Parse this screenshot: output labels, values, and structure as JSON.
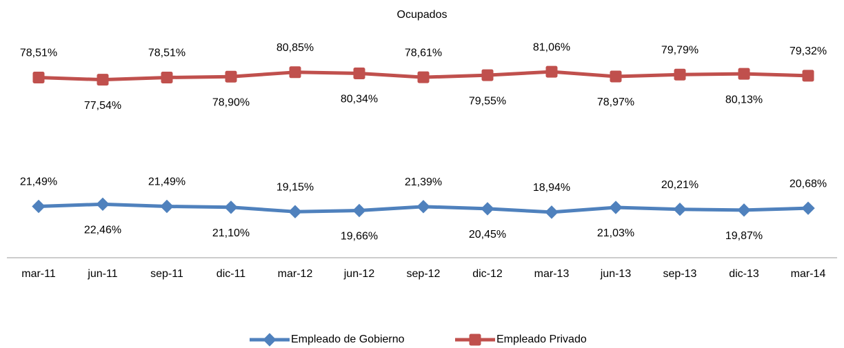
{
  "chart_data": {
    "type": "line",
    "title": "Ocupados",
    "categories": [
      "mar-11",
      "jun-11",
      "sep-11",
      "dic-11",
      "mar-12",
      "jun-12",
      "sep-12",
      "dic-12",
      "mar-13",
      "jun-13",
      "sep-13",
      "dic-13",
      "mar-14"
    ],
    "ylim": [
      0,
      100
    ],
    "legend": "bottom",
    "series": [
      {
        "name": "Empleado de Gobierno",
        "color": "#4f81bd",
        "marker": "diamond",
        "values": [
          21.49,
          22.46,
          21.49,
          21.1,
          19.15,
          19.66,
          21.39,
          20.45,
          18.94,
          21.03,
          20.21,
          19.87,
          20.68
        ],
        "value_labels": [
          "21,49%",
          "22,46%",
          "21,49%",
          "21,10%",
          "19,15%",
          "19,66%",
          "21,39%",
          "20,45%",
          "18,94%",
          "21,03%",
          "20,21%",
          "19,87%",
          "20,68%"
        ]
      },
      {
        "name": "Empleado Privado",
        "color": "#c0504d",
        "marker": "square",
        "values": [
          78.51,
          77.54,
          78.51,
          78.9,
          80.85,
          80.34,
          78.61,
          79.55,
          81.06,
          78.97,
          79.79,
          80.13,
          79.32
        ],
        "value_labels": [
          "78,51%",
          "77,54%",
          "78,51%",
          "78,90%",
          "80,85%",
          "80,34%",
          "78,61%",
          "79,55%",
          "81,06%",
          "78,97%",
          "79,79%",
          "80,13%",
          "79,32%"
        ]
      }
    ]
  }
}
